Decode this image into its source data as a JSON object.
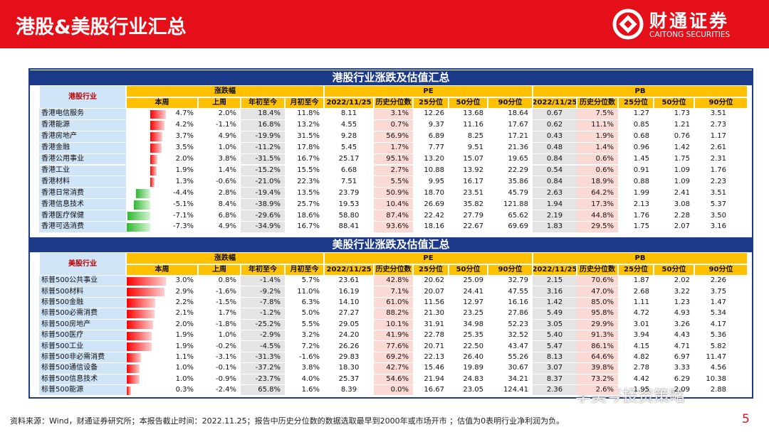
{
  "header": {
    "title": "港股&美股行业汇总",
    "logo_cn": "财通证券",
    "logo_en": "CAITONG SECURITIES"
  },
  "tables": [
    {
      "title": "港股行业涨跌及估值汇总",
      "corner": "港股行业",
      "groups": [
        "涨跌幅",
        "PE",
        "PB"
      ],
      "columns": [
        "本周",
        "上周",
        "年初至今",
        "月初至今",
        "2022/11/25",
        "历史分位数",
        "25分位",
        "50分位",
        "90分位",
        "2022/11/25",
        "历史分位数",
        "25分位",
        "50分位",
        "90分位"
      ],
      "rows": [
        [
          "香港电信服务",
          "4.7%",
          "2.0%",
          "18.4%",
          "11.8%",
          "8.11",
          "3.1%",
          "12.26",
          "13.68",
          "18.64",
          "0.67",
          "7.5%",
          "1.27",
          "1.73",
          "3.51"
        ],
        [
          "香港能源",
          "4.2%",
          "-1.1%",
          "16.8%",
          "13.2%",
          "4.55",
          "0.7%",
          "9.37",
          "11.16",
          "17.67",
          "0.62",
          "11.1%",
          "0.85",
          "1.21",
          "2.73"
        ],
        [
          "香港房地产",
          "3.7%",
          "4.9%",
          "-19.9%",
          "31.5%",
          "9.28",
          "56.9%",
          "6.89",
          "8.25",
          "17.21",
          "0.43",
          "1.9%",
          "0.68",
          "0.76",
          "1.17"
        ],
        [
          "香港金融",
          "3.5%",
          "1.0%",
          "-11.2%",
          "17.8%",
          "5.45",
          "1.7%",
          "7.77",
          "9.51",
          "21.36",
          "0.48",
          "1.4%",
          "0.96",
          "1.42",
          "2.61"
        ],
        [
          "香港公用事业",
          "2.0%",
          "3.8%",
          "-31.5%",
          "16.7%",
          "25.17",
          "95.1%",
          "13.20",
          "15.07",
          "19.65",
          "0.84",
          "0.6%",
          "1.45",
          "1.75",
          "2.31"
        ],
        [
          "香港工业",
          "1.9%",
          "1.4%",
          "-15.2%",
          "15.5%",
          "6.68",
          "2.7%",
          "10.88",
          "13.92",
          "22.29",
          "0.54",
          "0.6%",
          "0.91",
          "1.09",
          "1.76"
        ],
        [
          "香港材料",
          "1.3%",
          "-0.6%",
          "-21.0%",
          "22.3%",
          "7.51",
          "5.5%",
          "9.95",
          "16.17",
          "35.86",
          "0.84",
          "18.9%",
          "0.88",
          "1.09",
          "2.23"
        ],
        [
          "香港日常消费",
          "-4.4%",
          "2.8%",
          "-19.4%",
          "13.5%",
          "23.79",
          "50.9%",
          "18.70",
          "23.51",
          "45.79",
          "2.63",
          "64.2%",
          "1.99",
          "2.41",
          "3.51"
        ],
        [
          "香港信息技术",
          "-5.1%",
          "8.4%",
          "-38.9%",
          "25.7%",
          "19.53",
          "10.4%",
          "26.69",
          "35.82",
          "121.88",
          "1.94",
          "17.3%",
          "2.13",
          "3.08",
          "5.37"
        ],
        [
          "香港医疗保健",
          "-7.1%",
          "6.8%",
          "-29.6%",
          "18.6%",
          "58.80",
          "87.4%",
          "22.42",
          "27.79",
          "65.62",
          "2.19",
          "44.8%",
          "1.76",
          "2.28",
          "3.50"
        ],
        [
          "香港可选消费",
          "-7.3%",
          "4.9%",
          "-34.9%",
          "16.7%",
          "88.41",
          "93.6%",
          "18.16",
          "22.67",
          "69.69",
          "1.83",
          "29.5%",
          "1.75",
          "2.07",
          "3.16"
        ]
      ]
    },
    {
      "title": "美股行业涨跌及估值汇总",
      "corner": "美股行业",
      "groups": [
        "涨跌幅",
        "PE",
        "PB"
      ],
      "columns": [
        "本周",
        "上周",
        "年初至今",
        "月初至今",
        "2022/11/25",
        "历史分位数",
        "25分位",
        "50分位",
        "90分位",
        "2022/11/25",
        "历史分位数",
        "25分位",
        "50分位",
        "90分位"
      ],
      "rows": [
        [
          "标普500公共事业",
          "3.0%",
          "0.8%",
          "-1.4%",
          "5.7%",
          "23.61",
          "42.8%",
          "20.62",
          "25.09",
          "32.79",
          "2.15",
          "70.6%",
          "1.87",
          "2.02",
          "2.26"
        ],
        [
          "标普500材料",
          "2.9%",
          "-1.6%",
          "-9.2%",
          "11.0%",
          "16.19",
          "7.1%",
          "20.07",
          "24.41",
          "47.55",
          "3.16",
          "47.0%",
          "2.68",
          "3.22",
          "3.75"
        ],
        [
          "标普500金融",
          "2.2%",
          "-1.5%",
          "-7.8%",
          "6.3%",
          "14.10",
          "61.0%",
          "11.56",
          "12.97",
          "16.16",
          "1.42",
          "85.0%",
          "1.11",
          "1.23",
          "1.47"
        ],
        [
          "标普500必需消费",
          "2.1%",
          "1.7%",
          "-1.2%",
          "5.0%",
          "27.27",
          "88.2%",
          "21.30",
          "23.25",
          "27.86",
          "5.49",
          "95.8%",
          "4.72",
          "4.93",
          "5.34"
        ],
        [
          "标普500房地产",
          "2.0%",
          "-1.8%",
          "-25.2%",
          "5.5%",
          "29.05",
          "10.1%",
          "31.91",
          "34.98",
          "52.23",
          "3.05",
          "29.9%",
          "3.01",
          "3.26",
          "4.17"
        ],
        [
          "标普500医疗",
          "1.9%",
          "1.0%",
          "-2.9%",
          "3.2%",
          "24.20",
          "41.9%",
          "22.78",
          "25.35",
          "32.52",
          "5.40",
          "91.3%",
          "3.94",
          "4.43",
          "5.36"
        ],
        [
          "标普500工业",
          "1.9%",
          "-0.2%",
          "-4.5%",
          "7.2%",
          "26.26",
          "77.6%",
          "20.71",
          "22.50",
          "43.47",
          "5.47",
          "86.1%",
          "4.15",
          "4.71",
          "5.82"
        ],
        [
          "标普500非必需消费",
          "1.1%",
          "-3.1%",
          "-31.3%",
          "-1.6%",
          "29.83",
          "69.2%",
          "22.13",
          "26.40",
          "55.26",
          "8.13",
          "64.6%",
          "4.82",
          "6.97",
          "11.47"
        ],
        [
          "标普500通信设备",
          "1.0%",
          "-0.1%",
          "-37.2%",
          "3.8%",
          "18.30",
          "42.7%",
          "15.46",
          "19.89",
          "30.67",
          "3.07",
          "39.8%",
          "2.78",
          "3.33",
          "4.56"
        ],
        [
          "标普500信息技术",
          "1.0%",
          "-0.9%",
          "-23.7%",
          "4.0%",
          "25.37",
          "54.6%",
          "21.94",
          "24.83",
          "34.21",
          "8.37",
          "73.2%",
          "4.42",
          "6.29",
          "10.38"
        ],
        [
          "标普500能源",
          "0.3%",
          "-2.4%",
          "65.8%",
          "1.6%",
          "8.39",
          "0.0%",
          "16.67",
          "23.05",
          "124.41",
          "2.36",
          "2.6%",
          "1.95",
          "2.09",
          "2.88"
        ]
      ]
    }
  ],
  "footer": {
    "source": "资料来源：Wind，财通证券研究所；本报告截止时间：2022.11.25；报告中历史分位数的数据选取最早到2000年或市场开市 ；估值为0表明行业净利润为负。",
    "page": "5"
  },
  "watermark": "李美岑投资策略"
}
